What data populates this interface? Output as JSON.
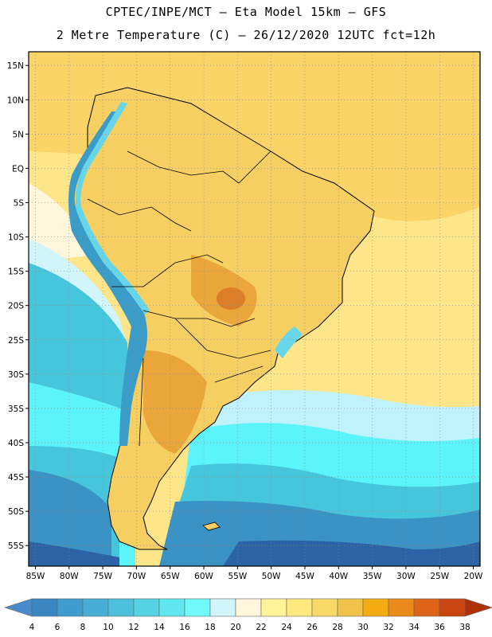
{
  "header": {
    "line1": "CPTEC/INPE/MCT –  Eta Model 15km – GFS",
    "line2": "2 Metre Temperature (C) – 26/12/2020 12UTC fct=12h"
  },
  "map": {
    "lat_labels": [
      "15N",
      "10N",
      "5N",
      "EQ",
      "5S",
      "10S",
      "15S",
      "20S",
      "25S",
      "30S",
      "35S",
      "40S",
      "45S",
      "50S",
      "55S"
    ],
    "lon_labels": [
      "85W",
      "80W",
      "75W",
      "70W",
      "65W",
      "60W",
      "55W",
      "50W",
      "45W",
      "40W",
      "35W",
      "30W",
      "25W",
      "20W"
    ],
    "lon_range": [
      -86,
      -19
    ],
    "lat_range": [
      17,
      -58
    ],
    "grid": "dotted"
  },
  "colorbar": {
    "labels": [
      "4",
      "6",
      "8",
      "10",
      "12",
      "14",
      "16",
      "18",
      "20",
      "22",
      "24",
      "26",
      "28",
      "30",
      "32",
      "34",
      "36",
      "38"
    ],
    "colors": [
      "#4a8ccb",
      "#3a86c2",
      "#3f9ccc",
      "#47aed6",
      "#4dc1dc",
      "#55d3e3",
      "#5ee7ef",
      "#6ff9fb",
      "#d2f4fb",
      "#fff6dc",
      "#fff39a",
      "#fde97e",
      "#f8d866",
      "#f0c24a",
      "#f4ad10",
      "#ea8a1a",
      "#dd6418",
      "#c84410",
      "#b03008"
    ]
  },
  "regions": {
    "colors": {
      "ocean_warm": "#fde58a",
      "ocean_n": "#fbd467",
      "land_mid": "#f6cf63",
      "land_hot": "#eaa63a",
      "hot_spot": "#dc7e28",
      "andes_cold": "#3c9cc8",
      "andes_mid": "#67d6e8",
      "cool_sea_1": "#bff2fa",
      "cool_sea_2": "#5cf4fb",
      "cold_sea_1": "#45c6dd",
      "cold_sea_2": "#3b93c5",
      "cold_sea_3": "#2b63a6"
    }
  }
}
